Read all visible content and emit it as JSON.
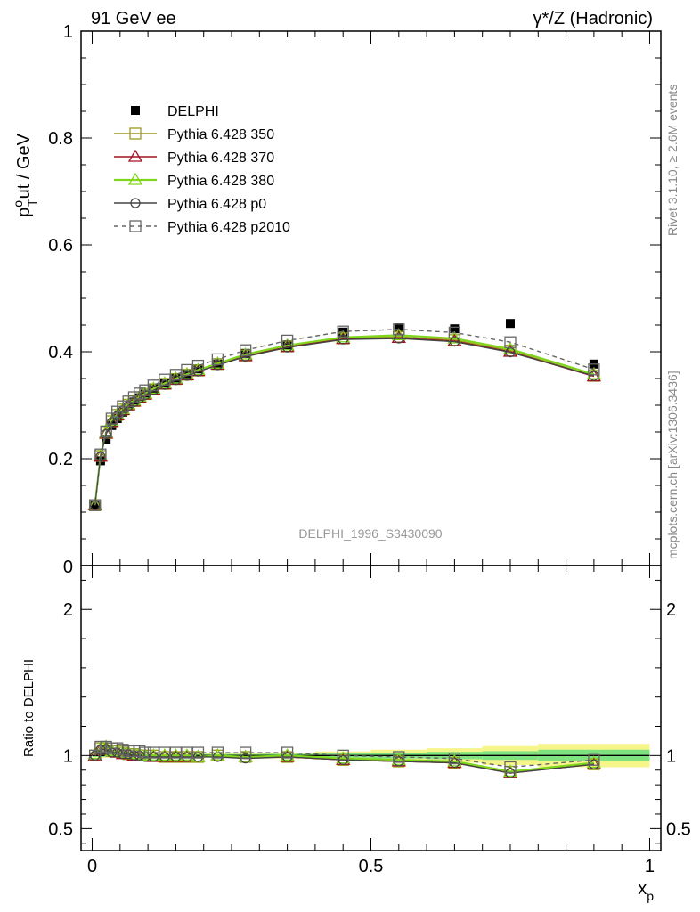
{
  "header": {
    "left": "91 GeV ee",
    "right": "γ*/Z (Hadronic)"
  },
  "side_labels": {
    "rivet": "Rivet 3.1.10, ≥ 2.6M events",
    "source": "mcplots.cern.ch [arXiv:1306.3436]"
  },
  "analysis_label": "DELPHI_1996_S3430090",
  "colors": {
    "delphi": "#000000",
    "p350": "#9a9a1e",
    "p370": "#a01020",
    "p380": "#7fd61c",
    "p0": "#444444",
    "p2010": "#666666",
    "band_inner": "#7ee37e",
    "band_outer": "#f5f58a"
  },
  "chart_data": [
    {
      "type": "scatter",
      "title": "",
      "ylabel": "p_T^out / GeV",
      "ylabel_main": "p",
      "ylabel_sup": "o",
      "ylabel_sub": "T",
      "ylabel_rest": "ut / GeV",
      "xlabel": "",
      "xlim": [
        -0.02,
        1.02
      ],
      "ylim": [
        0,
        1.0
      ],
      "yticks": [
        0.2,
        0.4,
        0.6,
        0.8,
        1
      ],
      "ytick_labels": [
        "0.2",
        "0.4",
        "0.6",
        "0.8",
        "1"
      ],
      "ytick_zero_label": "0",
      "legend_position": "top-left",
      "x": [
        0.005,
        0.015,
        0.025,
        0.035,
        0.045,
        0.055,
        0.065,
        0.075,
        0.085,
        0.095,
        0.11,
        0.13,
        0.15,
        0.17,
        0.19,
        0.225,
        0.275,
        0.35,
        0.45,
        0.55,
        0.65,
        0.75,
        0.9
      ],
      "series": [
        {
          "name": "DELPHI",
          "key": "delphi",
          "style": "data",
          "values": [
            0.113,
            0.196,
            0.236,
            0.262,
            0.275,
            0.287,
            0.297,
            0.306,
            0.314,
            0.321,
            0.331,
            0.342,
            0.351,
            0.359,
            0.368,
            0.377,
            0.397,
            0.413,
            0.437,
            0.445,
            0.443,
            0.453,
            0.377
          ]
        },
        {
          "name": "Pythia 6.428 350",
          "key": "p350",
          "style": "solid",
          "marker": "square",
          "values": [
            0.113,
            0.205,
            0.248,
            0.27,
            0.282,
            0.292,
            0.301,
            0.308,
            0.315,
            0.321,
            0.33,
            0.34,
            0.349,
            0.357,
            0.365,
            0.377,
            0.393,
            0.41,
            0.425,
            0.428,
            0.422,
            0.402,
            0.355
          ]
        },
        {
          "name": "Pythia 6.428 370",
          "key": "p370",
          "style": "solid",
          "marker": "triangle",
          "values": [
            0.113,
            0.204,
            0.247,
            0.269,
            0.281,
            0.291,
            0.3,
            0.307,
            0.314,
            0.32,
            0.329,
            0.339,
            0.348,
            0.356,
            0.364,
            0.376,
            0.392,
            0.409,
            0.424,
            0.426,
            0.42,
            0.4,
            0.354
          ]
        },
        {
          "name": "Pythia 6.428 380",
          "key": "p380",
          "style": "solid",
          "marker": "triangle",
          "values": [
            0.114,
            0.206,
            0.249,
            0.271,
            0.283,
            0.293,
            0.302,
            0.309,
            0.316,
            0.322,
            0.331,
            0.341,
            0.35,
            0.358,
            0.366,
            0.378,
            0.395,
            0.412,
            0.427,
            0.431,
            0.425,
            0.405,
            0.358
          ]
        },
        {
          "name": "Pythia 6.428 p0",
          "key": "p0",
          "style": "solid",
          "marker": "circle",
          "values": [
            0.113,
            0.204,
            0.246,
            0.268,
            0.28,
            0.29,
            0.299,
            0.306,
            0.313,
            0.319,
            0.328,
            0.338,
            0.347,
            0.355,
            0.363,
            0.375,
            0.391,
            0.408,
            0.423,
            0.425,
            0.419,
            0.399,
            0.355
          ]
        },
        {
          "name": "Pythia 6.428 p2010",
          "key": "p2010",
          "style": "dashed",
          "marker": "square",
          "values": [
            0.113,
            0.208,
            0.251,
            0.275,
            0.288,
            0.298,
            0.307,
            0.315,
            0.322,
            0.328,
            0.337,
            0.348,
            0.357,
            0.366,
            0.374,
            0.386,
            0.403,
            0.421,
            0.438,
            0.442,
            0.436,
            0.418,
            0.367
          ]
        }
      ]
    },
    {
      "type": "line",
      "title": "",
      "ylabel": "Ratio to DELPHI",
      "xlabel": "x_p",
      "xlabel_main": "x",
      "xlabel_sub": "p",
      "xlim": [
        -0.02,
        1.02
      ],
      "ylim": [
        0.35,
        2.3
      ],
      "xticks": [
        0,
        0.5,
        1
      ],
      "xtick_labels": [
        "0",
        "0.5",
        "1"
      ],
      "yticks": [
        0.5,
        1,
        2
      ],
      "ytick_labels": [
        "0.5",
        "1",
        "2"
      ],
      "x": [
        0.005,
        0.015,
        0.025,
        0.035,
        0.045,
        0.055,
        0.065,
        0.075,
        0.085,
        0.095,
        0.11,
        0.13,
        0.15,
        0.17,
        0.19,
        0.225,
        0.275,
        0.35,
        0.45,
        0.55,
        0.65,
        0.75,
        0.9
      ],
      "band": {
        "x_edges": [
          0,
          0.01,
          0.02,
          0.03,
          0.04,
          0.05,
          0.06,
          0.07,
          0.08,
          0.09,
          0.1,
          0.12,
          0.14,
          0.16,
          0.18,
          0.2,
          0.25,
          0.3,
          0.4,
          0.5,
          0.6,
          0.7,
          0.8,
          1.0
        ],
        "inner": [
          0.01,
          0.01,
          0.01,
          0.01,
          0.01,
          0.01,
          0.01,
          0.01,
          0.01,
          0.01,
          0.01,
          0.01,
          0.01,
          0.01,
          0.01,
          0.01,
          0.01,
          0.012,
          0.015,
          0.02,
          0.025,
          0.03,
          0.04
        ],
        "outer": [
          0.015,
          0.015,
          0.015,
          0.015,
          0.015,
          0.015,
          0.015,
          0.015,
          0.015,
          0.015,
          0.015,
          0.015,
          0.015,
          0.015,
          0.015,
          0.015,
          0.016,
          0.02,
          0.028,
          0.04,
          0.05,
          0.065,
          0.08
        ]
      },
      "series": [
        {
          "name": "Pythia 6.428 350",
          "key": "p350",
          "style": "solid",
          "marker": "square",
          "values": [
            1.0,
            1.05,
            1.05,
            1.03,
            1.03,
            1.02,
            1.01,
            1.01,
            1.0,
            1.0,
            1.0,
            0.99,
            0.99,
            0.99,
            0.99,
            1.0,
            0.99,
            0.99,
            0.97,
            0.96,
            0.95,
            0.89,
            0.94
          ]
        },
        {
          "name": "Pythia 6.428 370",
          "key": "p370",
          "style": "solid",
          "marker": "triangle",
          "values": [
            1.0,
            1.04,
            1.05,
            1.03,
            1.02,
            1.01,
            1.01,
            1.0,
            1.0,
            1.0,
            0.99,
            0.99,
            0.99,
            0.99,
            0.99,
            1.0,
            0.99,
            0.99,
            0.97,
            0.96,
            0.95,
            0.88,
            0.94
          ]
        },
        {
          "name": "Pythia 6.428 380",
          "key": "p380",
          "style": "solid",
          "marker": "triangle",
          "values": [
            1.01,
            1.05,
            1.06,
            1.03,
            1.03,
            1.02,
            1.02,
            1.01,
            1.01,
            1.0,
            1.0,
            1.0,
            1.0,
            1.0,
            0.99,
            1.0,
            0.99,
            1.0,
            0.98,
            0.97,
            0.96,
            0.89,
            0.95
          ]
        },
        {
          "name": "Pythia 6.428 p0",
          "key": "p0",
          "style": "solid",
          "marker": "circle",
          "values": [
            1.0,
            1.04,
            1.04,
            1.02,
            1.02,
            1.01,
            1.01,
            1.0,
            1.0,
            0.99,
            0.99,
            0.99,
            0.99,
            0.99,
            0.99,
            0.99,
            0.98,
            0.99,
            0.97,
            0.96,
            0.95,
            0.88,
            0.94
          ]
        },
        {
          "name": "Pythia 6.428 p2010",
          "key": "p2010",
          "style": "dashed",
          "marker": "square",
          "values": [
            1.0,
            1.06,
            1.06,
            1.05,
            1.05,
            1.04,
            1.03,
            1.03,
            1.03,
            1.02,
            1.02,
            1.02,
            1.02,
            1.02,
            1.02,
            1.02,
            1.02,
            1.02,
            1.0,
            0.99,
            0.98,
            0.92,
            0.97
          ]
        }
      ]
    }
  ]
}
